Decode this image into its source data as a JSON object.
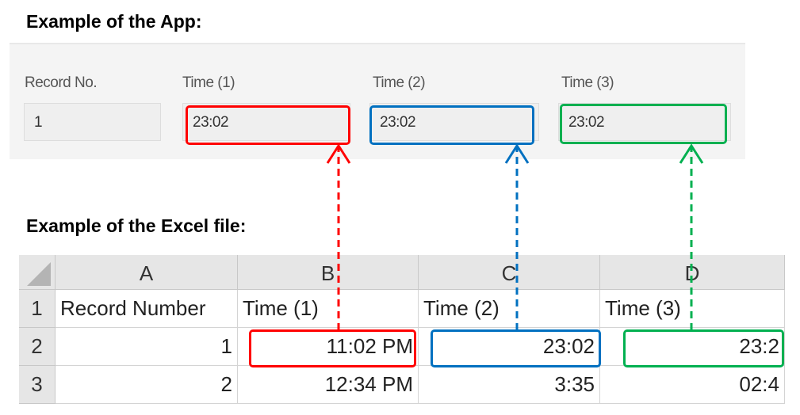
{
  "app_section": {
    "title": "Example of the App:",
    "fields": [
      {
        "label": "Record No.",
        "value": "1"
      },
      {
        "label": "Time (1)",
        "value": "23:02"
      },
      {
        "label": "Time (2)",
        "value": "23:02"
      },
      {
        "label": "Time (3)",
        "value": "23:02"
      }
    ]
  },
  "excel_section": {
    "title": "Example of the Excel file:",
    "columns": [
      "A",
      "B",
      "C",
      "D"
    ],
    "row_numbers": [
      "1",
      "2",
      "3"
    ],
    "rows": [
      [
        "Record Number",
        "Time (1)",
        "Time (2)",
        "Time (3)"
      ],
      [
        "1",
        "11:02 PM",
        "23:02",
        "23:2"
      ],
      [
        "2",
        "12:34 PM",
        "3:35",
        "02:4"
      ]
    ]
  },
  "colors": {
    "time1": "#ff0000",
    "time2": "#0070c0",
    "time3": "#00b050"
  }
}
